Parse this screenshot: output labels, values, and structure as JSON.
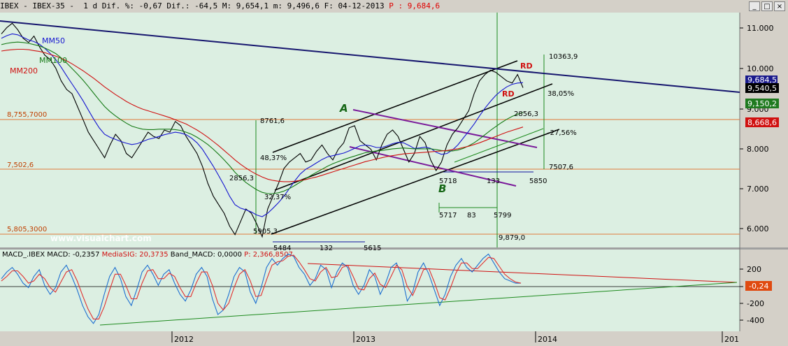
{
  "window": {
    "title_prefix": "IBEX - IBEX-35 -  1 d Dif. %: -0,67 Dif.: -64,5 M: 9,654,1 m: 9,496,6 F: 04-12-2013 ",
    "title_price": "P : 9,684,6",
    "btn_minimize": "_",
    "btn_maximize": "□",
    "btn_close": "×"
  },
  "chart_data": [
    {
      "type": "line",
      "name": "price-panel",
      "x_ticks": [
        "2012",
        "2013",
        "2014",
        "201"
      ],
      "y_ticks": [
        "11.000",
        "10.000",
        "9.000",
        "8.000",
        "7.000",
        "6.000"
      ],
      "ylim": [
        5800,
        11300
      ],
      "series": [
        {
          "name": "IBEX",
          "color": "#000000",
          "values": [
            10800,
            10950,
            11050,
            10900,
            10700,
            10600,
            10750,
            10500,
            10300,
            10200,
            10000,
            9700,
            9500,
            9400,
            9100,
            8800,
            8500,
            8300,
            8100,
            7900,
            8200,
            8450,
            8300,
            8000,
            7900,
            8100,
            8300,
            8500,
            8400,
            8350,
            8550,
            8500,
            8750,
            8650,
            8400,
            8200,
            8000,
            7700,
            7300,
            7000,
            6800,
            6600,
            6300,
            6100,
            6400,
            6700,
            6600,
            6350,
            6050,
            6700,
            7000,
            7300,
            7650,
            7800,
            7900,
            8000,
            7800,
            7850,
            8050,
            8200,
            8000,
            7850,
            8100,
            8250,
            8600,
            8650,
            8300,
            8200,
            8100,
            7850,
            8200,
            8450,
            8550,
            8400,
            8100,
            7800,
            8000,
            8400,
            8250,
            7850,
            7600,
            7800,
            8200,
            8450,
            8600,
            8800,
            9000,
            9400,
            9700,
            9850,
            9950,
            9900,
            9800,
            9700,
            9650,
            9850,
            9540
          ]
        },
        {
          "name": "MM50",
          "color": "#1515d0",
          "values": [
            10700,
            10760,
            10800,
            10780,
            10720,
            10660,
            10620,
            10560,
            10460,
            10340,
            10200,
            10020,
            9820,
            9630,
            9440,
            9240,
            9020,
            8800,
            8600,
            8450,
            8380,
            8330,
            8280,
            8240,
            8210,
            8230,
            8280,
            8330,
            8360,
            8400,
            8440,
            8470,
            8500,
            8480,
            8440,
            8360,
            8250,
            8100,
            7900,
            7700,
            7480,
            7250,
            7000,
            6800,
            6720,
            6680,
            6630,
            6560,
            6520,
            6600,
            6720,
            6850,
            7000,
            7180,
            7360,
            7520,
            7630,
            7700,
            7780,
            7860,
            7920,
            7950,
            7980,
            8010,
            8060,
            8120,
            8180,
            8200,
            8180,
            8140,
            8140,
            8180,
            8230,
            8260,
            8250,
            8190,
            8120,
            8130,
            8150,
            8120,
            8030,
            7980,
            8000,
            8080,
            8200,
            8360,
            8520,
            8690,
            8880,
            9060,
            9220,
            9360,
            9470,
            9560,
            9620,
            9650,
            9660
          ]
        },
        {
          "name": "MM100",
          "color": "#157a15",
          "values": [
            10550,
            10580,
            10600,
            10610,
            10600,
            10580,
            10550,
            10520,
            10470,
            10410,
            10340,
            10240,
            10120,
            9990,
            9860,
            9720,
            9570,
            9410,
            9250,
            9100,
            8980,
            8880,
            8790,
            8710,
            8640,
            8600,
            8570,
            8560,
            8560,
            8570,
            8570,
            8570,
            8560,
            8540,
            8500,
            8450,
            8380,
            8300,
            8210,
            8100,
            7980,
            7850,
            7710,
            7560,
            7430,
            7320,
            7230,
            7150,
            7090,
            7060,
            7060,
            7080,
            7120,
            7180,
            7250,
            7330,
            7410,
            7490,
            7560,
            7630,
            7700,
            7760,
            7810,
            7860,
            7900,
            7940,
            7980,
            8020,
            8040,
            8060,
            8070,
            8090,
            8110,
            8120,
            8130,
            8120,
            8110,
            8110,
            8110,
            8110,
            8090,
            8070,
            8060,
            8060,
            8080,
            8120,
            8180,
            8250,
            8340,
            8440,
            8540,
            8630,
            8720,
            8800,
            8870,
            8920,
            8960
          ]
        },
        {
          "name": "MM200",
          "color": "#d01010",
          "values": [
            10400,
            10420,
            10430,
            10440,
            10440,
            10430,
            10410,
            10390,
            10360,
            10320,
            10280,
            10230,
            10170,
            10100,
            10020,
            9940,
            9850,
            9760,
            9660,
            9560,
            9470,
            9380,
            9300,
            9220,
            9150,
            9090,
            9040,
            9000,
            8960,
            8920,
            8880,
            8840,
            8790,
            8740,
            8690,
            8620,
            8550,
            8470,
            8380,
            8280,
            8180,
            8070,
            7960,
            7850,
            7750,
            7660,
            7580,
            7510,
            7450,
            7400,
            7370,
            7350,
            7340,
            7340,
            7350,
            7370,
            7390,
            7420,
            7450,
            7490,
            7530,
            7570,
            7610,
            7650,
            7690,
            7730,
            7770,
            7810,
            7840,
            7870,
            7900,
            7930,
            7950,
            7970,
            7990,
            8000,
            8010,
            8020,
            8030,
            8040,
            8050,
            8060,
            8070,
            8090,
            8110,
            8140,
            8170,
            8210,
            8250,
            8300,
            8350,
            8400,
            8450,
            8500,
            8540,
            8580,
            8620
          ]
        }
      ],
      "labels": {
        "mm50": "MM50",
        "mm100": "MM100",
        "mm200": "MM200",
        "h_8755": "8,755,7000",
        "h_7502": "7,502,6",
        "h_5805": "5,805,3000",
        "a": "A",
        "b": "B",
        "rd1": "RD",
        "rd2": "RD",
        "m_10363": "10363,9",
        "m_3805": "38,05%",
        "m_2856_r": "2856,3",
        "m_2756": "-27,56%",
        "m_7507": "7507,6",
        "m_8761": "8761,6",
        "m_4837": "48,37%",
        "m_2856_l": "2856,3",
        "m_3237": "32,37%",
        "m_5905": "5905,3",
        "m_5718": "5718",
        "m_133": "133",
        "m_5850": "5850",
        "m_5717": "5717",
        "m_83": "83",
        "m_5799": "5799",
        "m_9879": "9,879,0",
        "m_5484": "5484",
        "m_132": "132",
        "m_5615": "5615",
        "tag_9684": "9,684,5",
        "tag_9540": "9,540,5",
        "tag_9150": "9,150,2",
        "tag_8668": "8,668,6",
        "watermark": "www.visualchart.com"
      }
    },
    {
      "type": "line",
      "name": "macd-panel",
      "header_prefix": "MACD_.IBEX MACD: -0,2357 ",
      "header_media": "MediaSIG: 20,3735 ",
      "header_band": "Band_MACD: 0,0000 ",
      "header_p": "P: 2,366,8507",
      "y_ticks": [
        "200",
        "0",
        "-200",
        "-400"
      ],
      "ylim": [
        -450,
        280
      ],
      "value_tag": "-0,24",
      "series": [
        {
          "name": "MACD",
          "color": "#1d6fd0",
          "values": [
            20,
            80,
            120,
            60,
            -20,
            -60,
            40,
            100,
            -40,
            -120,
            -60,
            80,
            140,
            40,
            -80,
            -220,
            -320,
            -380,
            -300,
            -120,
            40,
            120,
            20,
            -140,
            -220,
            -80,
            80,
            140,
            60,
            -40,
            60,
            100,
            -20,
            -120,
            -180,
            -80,
            60,
            120,
            40,
            -160,
            -300,
            -260,
            -120,
            40,
            120,
            80,
            -100,
            -200,
            -60,
            120,
            200,
            140,
            200,
            240,
            220,
            120,
            60,
            -40,
            20,
            140,
            100,
            -60,
            80,
            160,
            120,
            -40,
            -120,
            -40,
            100,
            40,
            -120,
            -20,
            120,
            160,
            40,
            -180,
            -100,
            80,
            160,
            60,
            -80,
            -220,
            -120,
            40,
            140,
            200,
            120,
            80,
            140,
            200,
            240,
            160,
            80,
            20,
            0,
            -20,
            -20
          ]
        },
        {
          "name": "Signal",
          "color": "#e03030",
          "values": [
            0,
            40,
            90,
            90,
            40,
            -20,
            0,
            60,
            20,
            -60,
            -100,
            -10,
            80,
            100,
            0,
            -130,
            -250,
            -340,
            -340,
            -230,
            -80,
            60,
            60,
            -40,
            -160,
            -160,
            -20,
            90,
            100,
            20,
            20,
            70,
            40,
            -60,
            -140,
            -140,
            -20,
            80,
            80,
            -40,
            -200,
            -260,
            -200,
            -60,
            60,
            100,
            0,
            -140,
            -130,
            10,
            140,
            170,
            180,
            220,
            230,
            170,
            100,
            20,
            0,
            80,
            120,
            30,
            40,
            120,
            140,
            40,
            -70,
            -80,
            20,
            70,
            -30,
            -60,
            40,
            140,
            100,
            -50,
            -130,
            -20,
            100,
            110,
            -10,
            -150,
            -170,
            -60,
            70,
            160,
            160,
            110,
            110,
            160,
            210,
            200,
            130,
            60,
            20,
            -10,
            -20
          ]
        }
      ]
    }
  ]
}
